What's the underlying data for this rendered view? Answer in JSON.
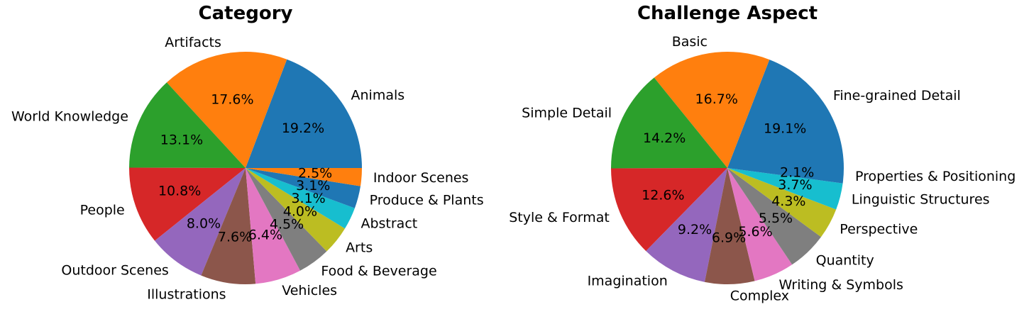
{
  "chart_data": [
    {
      "type": "pie",
      "title": "Category",
      "start_angle": 0,
      "direction": "counterclockwise",
      "slices": [
        {
          "label": "Animals",
          "value": 19.2,
          "pct_label": "19.2%",
          "color": "#1f77b4"
        },
        {
          "label": "Artifacts",
          "value": 17.6,
          "pct_label": "17.6%",
          "color": "#ff7f0e"
        },
        {
          "label": "World Knowledge",
          "value": 13.1,
          "pct_label": "13.1%",
          "color": "#2ca02c"
        },
        {
          "label": "People",
          "value": 10.8,
          "pct_label": "10.8%",
          "color": "#d62728"
        },
        {
          "label": "Outdoor Scenes",
          "value": 8.0,
          "pct_label": "8.0%",
          "color": "#9467bd"
        },
        {
          "label": "Illustrations",
          "value": 7.6,
          "pct_label": "7.6%",
          "color": "#8c564b"
        },
        {
          "label": "Vehicles",
          "value": 6.4,
          "pct_label": "6.4%",
          "color": "#e377c2"
        },
        {
          "label": "Food & Beverage",
          "value": 4.5,
          "pct_label": "4.5%",
          "color": "#7f7f7f"
        },
        {
          "label": "Arts",
          "value": 4.0,
          "pct_label": "4.0%",
          "color": "#bcbd22"
        },
        {
          "label": "Abstract",
          "value": 3.1,
          "pct_label": "3.1%",
          "color": "#17becf"
        },
        {
          "label": "Produce & Plants",
          "value": 3.1,
          "pct_label": "3.1%",
          "color": "#1f77b4"
        },
        {
          "label": "Indoor Scenes",
          "value": 2.5,
          "pct_label": "2.5%",
          "color": "#ff7f0e"
        }
      ]
    },
    {
      "type": "pie",
      "title": "Challenge Aspect",
      "start_angle": 0,
      "direction": "counterclockwise",
      "slices": [
        {
          "label": "Fine-grained Detail",
          "value": 19.1,
          "pct_label": "19.1%",
          "color": "#1f77b4"
        },
        {
          "label": "Basic",
          "value": 16.7,
          "pct_label": "16.7%",
          "color": "#ff7f0e"
        },
        {
          "label": "Simple Detail",
          "value": 14.2,
          "pct_label": "14.2%",
          "color": "#2ca02c"
        },
        {
          "label": "Style & Format",
          "value": 12.6,
          "pct_label": "12.6%",
          "color": "#d62728"
        },
        {
          "label": "Imagination",
          "value": 9.2,
          "pct_label": "9.2%",
          "color": "#9467bd"
        },
        {
          "label": "Complex",
          "value": 6.9,
          "pct_label": "6.9%",
          "color": "#8c564b"
        },
        {
          "label": "Writing & Symbols",
          "value": 5.6,
          "pct_label": "5.6%",
          "color": "#e377c2"
        },
        {
          "label": "Quantity",
          "value": 5.5,
          "pct_label": "5.5%",
          "color": "#7f7f7f"
        },
        {
          "label": "Perspective",
          "value": 4.3,
          "pct_label": "4.3%",
          "color": "#bcbd22"
        },
        {
          "label": "Linguistic Structures",
          "value": 3.7,
          "pct_label": "3.7%",
          "color": "#17becf"
        },
        {
          "label": "Properties & Positioning",
          "value": 2.1,
          "pct_label": "2.1%",
          "color": "#1f77b4"
        }
      ]
    }
  ]
}
